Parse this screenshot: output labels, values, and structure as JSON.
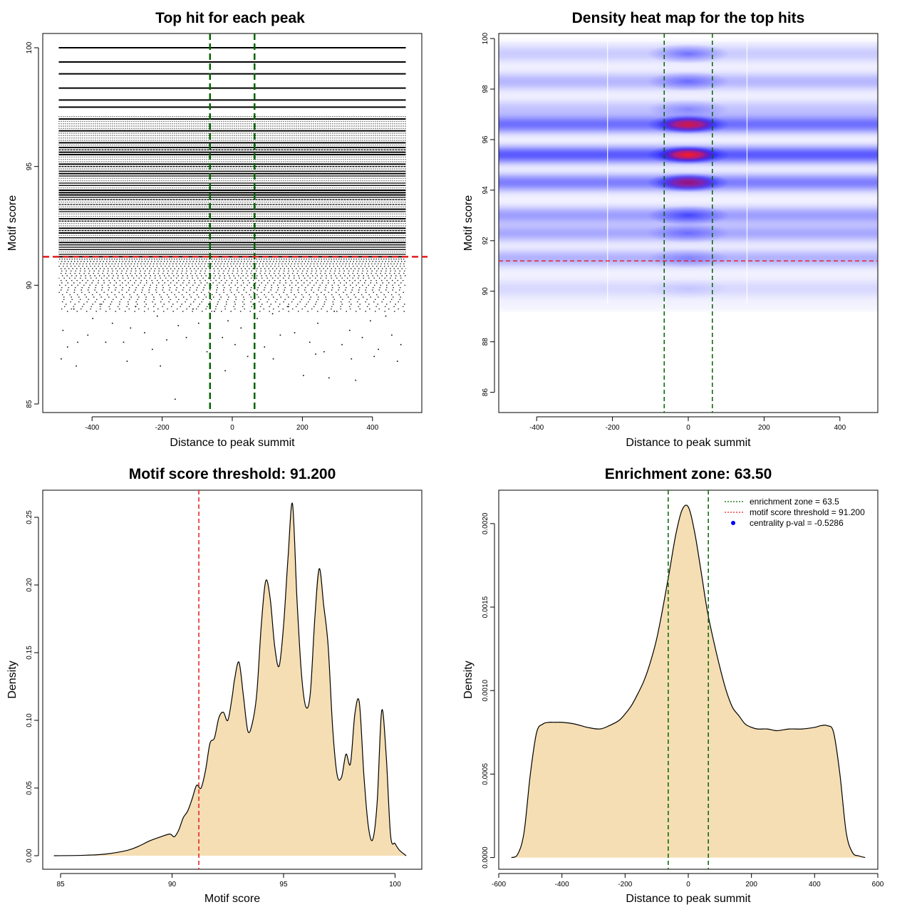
{
  "colors": {
    "threshold_line": "#e31a1c",
    "zone_line": "#006400",
    "density_fill": "#f5deb3",
    "heat_low": "#ffffff",
    "heat_mid": "#0000ff",
    "heat_high": "#ff0000",
    "centrality_dot": "#0000ff"
  },
  "chart_data": [
    {
      "id": "p1",
      "type": "scatter",
      "title": "Top hit for each peak",
      "xlabel": "Distance to peak summit",
      "ylabel": "Motif score",
      "xlim": [
        -500,
        500
      ],
      "ylim": [
        85,
        100
      ],
      "xticks": [
        -400,
        -200,
        0,
        200,
        400
      ],
      "xtick_labels": [
        "-400",
        "-200",
        "0",
        "200",
        "400"
      ],
      "yticks": [
        85,
        90,
        95,
        100
      ],
      "ytick_labels": [
        "85",
        "90",
        "95",
        "100"
      ],
      "threshold": 91.2,
      "zone": [
        -63.5,
        63.5
      ],
      "solid_rows": [
        100.0,
        99.4,
        98.9,
        98.3,
        97.8,
        97.5
      ],
      "dense_range": [
        91.2,
        97.1
      ],
      "sparse_points": [
        [
          -483,
          88.1
        ],
        [
          -470,
          87.4
        ],
        [
          -452,
          89.0
        ],
        [
          -441,
          87.6
        ],
        [
          -412,
          87.9
        ],
        [
          -398,
          88.6
        ],
        [
          -377,
          89.2
        ],
        [
          -361,
          87.6
        ],
        [
          -342,
          88.4
        ],
        [
          -310,
          87.6
        ],
        [
          -290,
          88.2
        ],
        [
          -276,
          89.1
        ],
        [
          -250,
          88.0
        ],
        [
          -228,
          87.3
        ],
        [
          -214,
          88.7
        ],
        [
          -187,
          87.7
        ],
        [
          -163,
          85.2
        ],
        [
          -154,
          88.3
        ],
        [
          -131,
          87.8
        ],
        [
          -112,
          89.0
        ],
        [
          -96,
          88.4
        ],
        [
          -72,
          87.2
        ],
        [
          -51,
          88.9
        ],
        [
          -28,
          87.8
        ],
        [
          -12,
          88.5
        ],
        [
          8,
          87.5
        ],
        [
          25,
          88.2
        ],
        [
          44,
          87.0
        ],
        [
          71,
          88.6
        ],
        [
          92,
          87.4
        ],
        [
          115,
          88.8
        ],
        [
          137,
          87.9
        ],
        [
          160,
          89.1
        ],
        [
          178,
          88.0
        ],
        [
          203,
          86.2
        ],
        [
          221,
          87.6
        ],
        [
          244,
          88.4
        ],
        [
          262,
          87.2
        ],
        [
          276,
          86.1
        ],
        [
          291,
          88.9
        ],
        [
          313,
          87.5
        ],
        [
          335,
          88.1
        ],
        [
          352,
          86.0
        ],
        [
          371,
          87.8
        ],
        [
          394,
          88.5
        ],
        [
          417,
          87.3
        ],
        [
          438,
          88.7
        ],
        [
          455,
          87.9
        ],
        [
          471,
          86.8
        ],
        [
          481,
          87.5
        ],
        [
          -488,
          86.9
        ],
        [
          -445,
          86.6
        ],
        [
          117,
          86.9
        ],
        [
          405,
          87.0
        ],
        [
          -20,
          86.4
        ],
        [
          340,
          86.9
        ],
        [
          -300,
          86.8
        ],
        [
          238,
          87.1
        ],
        [
          -205,
          86.6
        ],
        [
          64,
          86.5
        ]
      ]
    },
    {
      "id": "p2",
      "type": "heatmap",
      "title": "Density heat map for the top hits",
      "xlabel": "Distance to peak summit",
      "ylabel": "Motif score",
      "xlim": [
        -500,
        500
      ],
      "ylim": [
        85.2,
        100.2
      ],
      "xticks": [
        -400,
        -200,
        0,
        200,
        400
      ],
      "xtick_labels": [
        "-400",
        "-200",
        "0",
        "200",
        "400"
      ],
      "yticks": [
        86,
        88,
        90,
        92,
        94,
        96,
        98,
        100
      ],
      "ytick_labels": [
        "86",
        "88",
        "90",
        "92",
        "94",
        "96",
        "98",
        "100"
      ],
      "threshold": 91.2,
      "zone": [
        -63.5,
        63.5
      ],
      "bands": [
        {
          "score": 99.4,
          "base": 0.18,
          "center": 0.75
        },
        {
          "score": 98.3,
          "base": 0.28,
          "center": 0.7
        },
        {
          "score": 97.2,
          "base": 0.22,
          "center": 0.5
        },
        {
          "score": 96.6,
          "base": 0.62,
          "center": 1.85
        },
        {
          "score": 95.4,
          "base": 0.72,
          "center": 2.0
        },
        {
          "score": 94.3,
          "base": 0.55,
          "center": 1.6
        },
        {
          "score": 93.0,
          "base": 0.4,
          "center": 0.95
        },
        {
          "score": 92.3,
          "base": 0.35,
          "center": 0.6
        },
        {
          "score": 91.3,
          "base": 0.3,
          "center": 0.45
        },
        {
          "score": 90.1,
          "base": 0.12,
          "center": 0.15
        }
      ]
    },
    {
      "id": "p3",
      "type": "area",
      "title": "Motif score threshold: 91.200",
      "xlabel": "Motif score",
      "ylabel": "Density",
      "xlim": [
        84.2,
        101.2
      ],
      "ylim": [
        -0.01,
        0.27
      ],
      "xticks": [
        85,
        90,
        95,
        100
      ],
      "xtick_labels": [
        "85",
        "90",
        "95",
        "100"
      ],
      "yticks": [
        0.0,
        0.05,
        0.1,
        0.15,
        0.2,
        0.25
      ],
      "ytick_labels": [
        "0.00",
        "0.05",
        "0.10",
        "0.15",
        "0.20",
        "0.25"
      ],
      "threshold": 91.2,
      "x": [
        84.7,
        86.0,
        87.0,
        88.0,
        88.5,
        89.0,
        89.5,
        89.9,
        90.1,
        90.3,
        90.5,
        90.7,
        90.9,
        91.1,
        91.3,
        91.5,
        91.7,
        91.9,
        92.1,
        92.3,
        92.5,
        92.7,
        92.8,
        93.0,
        93.2,
        93.4,
        93.6,
        93.8,
        94.0,
        94.2,
        94.4,
        94.6,
        94.8,
        95.0,
        95.2,
        95.4,
        95.6,
        95.8,
        96.0,
        96.2,
        96.4,
        96.6,
        96.8,
        97.0,
        97.2,
        97.4,
        97.6,
        97.8,
        98.0,
        98.2,
        98.4,
        98.6,
        98.8,
        99.0,
        99.2,
        99.4,
        99.6,
        99.8,
        100.0,
        100.2,
        100.5
      ],
      "y": [
        0.0,
        0.0003,
        0.0012,
        0.004,
        0.007,
        0.011,
        0.014,
        0.016,
        0.014,
        0.019,
        0.028,
        0.033,
        0.042,
        0.052,
        0.05,
        0.063,
        0.083,
        0.087,
        0.102,
        0.106,
        0.1,
        0.118,
        0.13,
        0.143,
        0.118,
        0.092,
        0.098,
        0.12,
        0.17,
        0.203,
        0.19,
        0.155,
        0.14,
        0.17,
        0.22,
        0.26,
        0.19,
        0.135,
        0.11,
        0.12,
        0.175,
        0.212,
        0.185,
        0.155,
        0.095,
        0.06,
        0.058,
        0.075,
        0.068,
        0.105,
        0.113,
        0.06,
        0.022,
        0.012,
        0.04,
        0.107,
        0.075,
        0.015,
        0.009,
        0.004,
        0.0
      ]
    },
    {
      "id": "p4",
      "type": "area",
      "title": "Enrichment zone: 63.50",
      "xlabel": "Distance to peak summit",
      "ylabel": "Density",
      "xlim": [
        -600,
        600
      ],
      "ylim": [
        -7e-05,
        0.0022
      ],
      "xticks": [
        -600,
        -400,
        -200,
        0,
        200,
        400,
        600
      ],
      "xtick_labels": [
        "-600",
        "-400",
        "-200",
        "0",
        "200",
        "400",
        "600"
      ],
      "yticks": [
        0.0,
        0.0005,
        0.001,
        0.0015,
        0.002
      ],
      "ytick_labels": [
        "0.0000",
        "0.0005",
        "0.0010",
        "0.0015",
        "0.0020"
      ],
      "zone": [
        -63.5,
        63.5
      ],
      "x": [
        -560,
        -540,
        -520,
        -500,
        -480,
        -460,
        -440,
        -420,
        -400,
        -360,
        -320,
        -280,
        -250,
        -220,
        -200,
        -180,
        -160,
        -140,
        -120,
        -100,
        -80,
        -60,
        -40,
        -20,
        0,
        20,
        40,
        60,
        80,
        100,
        120,
        140,
        160,
        180,
        200,
        220,
        250,
        280,
        320,
        360,
        400,
        420,
        440,
        460,
        480,
        500,
        520,
        540,
        560
      ],
      "y": [
        0.0,
        2e-05,
        0.00015,
        0.0005,
        0.00075,
        0.0008,
        0.00081,
        0.00081,
        0.00081,
        0.0008,
        0.00078,
        0.00077,
        0.00079,
        0.00082,
        0.00086,
        0.00091,
        0.00098,
        0.00106,
        0.00117,
        0.00131,
        0.0015,
        0.00171,
        0.00193,
        0.00208,
        0.0021,
        0.00195,
        0.00172,
        0.00148,
        0.0013,
        0.00114,
        0.001,
        0.0009,
        0.00085,
        0.0008,
        0.00078,
        0.00077,
        0.00077,
        0.00076,
        0.00077,
        0.00077,
        0.00078,
        0.00079,
        0.00079,
        0.00075,
        0.0005,
        0.00015,
        3e-05,
        1e-05,
        0.0
      ],
      "legend": {
        "position": "top-right",
        "entries": [
          "enrichment zone = 63.5",
          "motif score threshold = 91.200",
          "centrality p-val = -0.5286"
        ]
      }
    }
  ]
}
